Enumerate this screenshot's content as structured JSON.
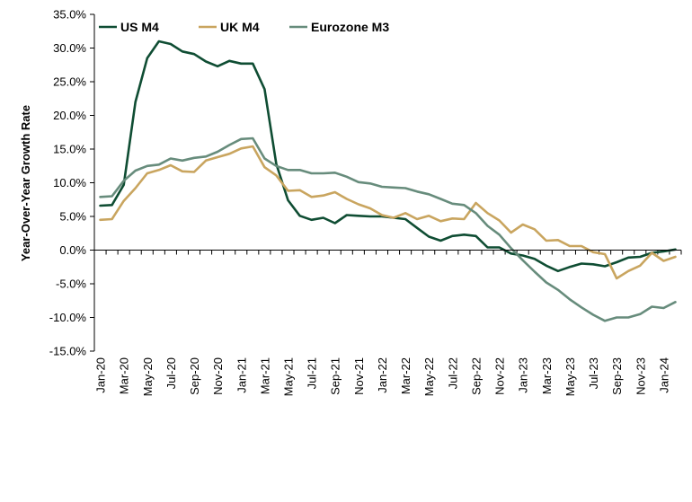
{
  "chart_data": {
    "type": "line",
    "title": "",
    "ylabel": "Year-Over-Year Growth Rate",
    "xlabel": "",
    "ylim": [
      -15,
      35
    ],
    "y_ticks": [
      -15,
      -10,
      -5,
      0,
      5,
      10,
      15,
      20,
      25,
      30,
      35
    ],
    "y_tick_format": "percent_1dp",
    "legend_position": "top-left",
    "x": [
      "Jan-20",
      "Feb-20",
      "Mar-20",
      "Apr-20",
      "May-20",
      "Jun-20",
      "Jul-20",
      "Aug-20",
      "Sep-20",
      "Oct-20",
      "Nov-20",
      "Dec-20",
      "Jan-21",
      "Feb-21",
      "Mar-21",
      "Apr-21",
      "May-21",
      "Jun-21",
      "Jul-21",
      "Aug-21",
      "Sep-21",
      "Oct-21",
      "Nov-21",
      "Dec-21",
      "Jan-22",
      "Feb-22",
      "Mar-22",
      "Apr-22",
      "May-22",
      "Jun-22",
      "Jul-22",
      "Aug-22",
      "Sep-22",
      "Oct-22",
      "Nov-22",
      "Dec-22",
      "Jan-23",
      "Feb-23",
      "Mar-23",
      "Apr-23",
      "May-23",
      "Jun-23",
      "Jul-23",
      "Aug-23",
      "Sep-23",
      "Oct-23",
      "Nov-23",
      "Dec-23",
      "Jan-24",
      "Feb-24"
    ],
    "x_tick_labels": [
      "Jan-20",
      "Mar-20",
      "May-20",
      "Jul-20",
      "Sep-20",
      "Nov-20",
      "Jan-21",
      "Mar-21",
      "May-21",
      "Jul-21",
      "Sep-21",
      "Nov-21",
      "Jan-22",
      "Mar-22",
      "May-22",
      "Jul-22",
      "Sep-22",
      "Nov-22",
      "Jan-23",
      "Mar-23",
      "May-23",
      "Jul-23",
      "Sep-23",
      "Nov-23",
      "Jan-24"
    ],
    "series": [
      {
        "name": "US M4",
        "color": "#0f4d33",
        "values": [
          6.6,
          6.7,
          9.7,
          22.0,
          28.5,
          31.0,
          30.6,
          29.5,
          29.1,
          28.0,
          27.3,
          28.1,
          27.7,
          27.7,
          23.9,
          12.8,
          7.4,
          5.1,
          4.5,
          4.8,
          4.0,
          5.2,
          5.1,
          5.0,
          5.0,
          4.8,
          4.6,
          3.3,
          2.0,
          1.4,
          2.1,
          2.3,
          2.1,
          0.4,
          0.4,
          -0.5,
          -0.8,
          -1.3,
          -2.3,
          -3.1,
          -2.5,
          -2.0,
          -2.1,
          -2.4,
          -1.8,
          -1.1,
          -1.0,
          -0.4,
          -0.2,
          0.1
        ]
      },
      {
        "name": "UK M4",
        "color": "#c9a55f",
        "values": [
          4.5,
          4.6,
          7.3,
          9.2,
          11.4,
          11.9,
          12.6,
          11.7,
          11.6,
          13.3,
          13.8,
          14.3,
          15.1,
          15.4,
          12.3,
          11.1,
          8.8,
          8.9,
          7.9,
          8.1,
          8.6,
          7.6,
          6.8,
          6.2,
          5.2,
          4.8,
          5.5,
          4.6,
          5.1,
          4.3,
          4.7,
          4.6,
          7.0,
          5.5,
          4.4,
          2.6,
          3.8,
          3.1,
          1.4,
          1.5,
          0.6,
          0.6,
          -0.3,
          -0.6,
          -4.2,
          -3.1,
          -2.3,
          -0.4,
          -1.6,
          -1.0
        ]
      },
      {
        "name": "Eurozone M3",
        "color": "#678c7c",
        "values": [
          7.9,
          8.0,
          10.3,
          11.8,
          12.5,
          12.7,
          13.6,
          13.3,
          13.7,
          13.9,
          14.6,
          15.6,
          16.5,
          16.6,
          13.6,
          12.5,
          11.9,
          11.9,
          11.4,
          11.4,
          11.5,
          10.9,
          10.1,
          9.9,
          9.4,
          9.3,
          9.2,
          8.7,
          8.3,
          7.6,
          6.9,
          6.7,
          5.5,
          3.6,
          2.3,
          0.3,
          -1.5,
          -3.2,
          -4.8,
          -5.9,
          -7.3,
          -8.5,
          -9.6,
          -10.5,
          -10.0,
          -10.0,
          -9.5,
          -8.4,
          -8.6,
          -7.7
        ]
      }
    ]
  }
}
